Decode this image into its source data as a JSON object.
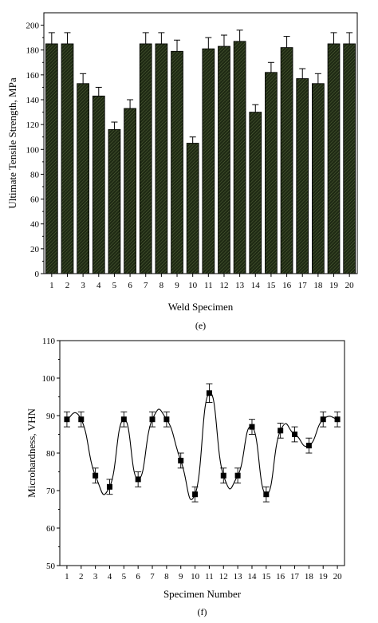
{
  "chart_data": [
    {
      "type": "bar",
      "panel_label": "(e)",
      "xlabel": "Weld Specimen",
      "ylabel": "Ultimate Tensile Strength, MPa",
      "ylim": [
        0,
        210
      ],
      "yticks": [
        0,
        20,
        40,
        60,
        80,
        100,
        120,
        140,
        160,
        180,
        200
      ],
      "categories": [
        "1",
        "2",
        "3",
        "4",
        "5",
        "6",
        "7",
        "8",
        "9",
        "10",
        "11",
        "12",
        "13",
        "14",
        "15",
        "16",
        "17",
        "18",
        "19",
        "20"
      ],
      "values": [
        185,
        185,
        153,
        143,
        116,
        133,
        185,
        185,
        179,
        105,
        181,
        183,
        187,
        130,
        162,
        182,
        157,
        153,
        185,
        185
      ],
      "errors": [
        9,
        9,
        8,
        7,
        6,
        7,
        9,
        9,
        9,
        5,
        9,
        9,
        9,
        6,
        8,
        9,
        8,
        8,
        9,
        9
      ],
      "bar_color": "#1f2a14",
      "grid": false
    },
    {
      "type": "scatter",
      "panel_label": "(f)",
      "xlabel": "Specimen Number",
      "ylabel": "Microhardness, VHN",
      "xlim": [
        0.5,
        20.5
      ],
      "ylim": [
        50,
        110
      ],
      "xticks": [
        1,
        2,
        3,
        4,
        5,
        6,
        7,
        8,
        9,
        10,
        11,
        12,
        13,
        14,
        15,
        16,
        17,
        18,
        19,
        20
      ],
      "yticks": [
        50,
        60,
        70,
        80,
        90,
        100,
        110
      ],
      "x": [
        1,
        2,
        3,
        4,
        5,
        6,
        7,
        8,
        9,
        10,
        11,
        12,
        13,
        14,
        15,
        16,
        17,
        18,
        19,
        20
      ],
      "y": [
        89,
        89,
        74,
        71,
        89,
        73,
        89,
        89,
        78,
        69,
        96,
        74,
        74,
        87,
        69,
        86,
        85,
        82,
        89,
        89
      ],
      "errors": [
        2,
        2,
        2,
        2,
        2,
        2,
        2,
        2,
        2,
        2,
        2.5,
        2,
        2,
        2,
        2,
        2,
        2,
        2,
        2,
        2
      ],
      "smooth_curve": true,
      "marker": "square",
      "grid": false
    }
  ]
}
